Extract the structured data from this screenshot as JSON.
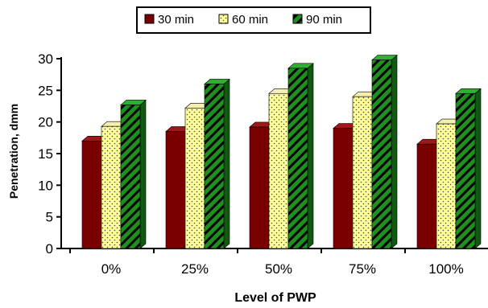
{
  "chart_data": {
    "type": "bar",
    "xlabel": "Level of PWP",
    "ylabel": "Penetration, dmm",
    "categories": [
      "0%",
      "25%",
      "50%",
      "75%",
      "100%"
    ],
    "ylim": [
      0,
      30
    ],
    "yticks": [
      0,
      5,
      10,
      15,
      20,
      25,
      30
    ],
    "legend_position": "top-center",
    "grid": false,
    "series": [
      {
        "name": "30 min",
        "color": "#7a0000",
        "values": [
          17,
          18.5,
          19.2,
          19,
          16.5
        ]
      },
      {
        "name": "60 min",
        "color": "#ffff99",
        "values": [
          19.3,
          22.2,
          24.5,
          24,
          19.7
        ]
      },
      {
        "name": "90 min",
        "color": "#1f8f1f",
        "values": [
          22.7,
          26,
          28.5,
          29.8,
          24.5
        ]
      }
    ]
  }
}
